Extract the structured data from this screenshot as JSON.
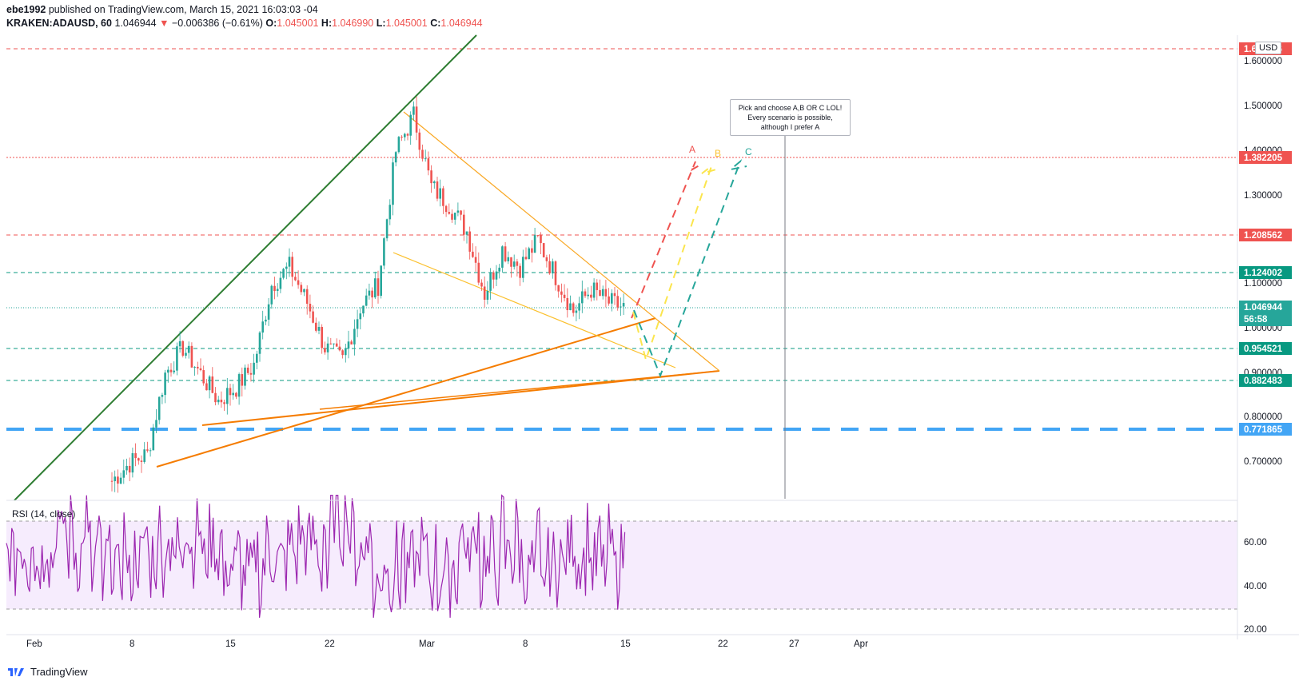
{
  "header": {
    "publisher": "ebe1992",
    "published_text": "published on TradingView.com, March 15, 2021 16:03:03 -04",
    "symbol": "KRAKEN:ADAUSD, 60",
    "last": "1.046944",
    "change": "−0.006386 (−0.61%)",
    "o_label": "O:",
    "o": "1.045001",
    "h_label": "H:",
    "h": "1.046990",
    "l_label": "L:",
    "l": "1.045001",
    "c_label": "C:",
    "c": "1.046944"
  },
  "currency_badge": "USD",
  "note": "Pick and choose A,B OR C LOL! Every scenario is possible, although I prefer A",
  "rsi_label": "RSI (14, close)",
  "footer": {
    "brand": "TradingView"
  },
  "price_axis": {
    "ticks": [
      "1.600000",
      "1.500000",
      "1.400000",
      "1.300000",
      "1.100000",
      "1.000000",
      "0.900000",
      "0.800000",
      "0.700000"
    ],
    "tags": [
      {
        "text": "1.655856",
        "color": "#ef5350"
      },
      {
        "text": "1.382205",
        "color": "#ef5350"
      },
      {
        "text": "1.208562",
        "color": "#ef5350"
      },
      {
        "text": "1.124002",
        "color": "#089981"
      },
      {
        "text": "1.046944",
        "color": "#26a69a"
      },
      {
        "text": "56:58",
        "color": "#26a69a"
      },
      {
        "text": "0.954521",
        "color": "#089981"
      },
      {
        "text": "0.882483",
        "color": "#089981"
      },
      {
        "text": "0.771865",
        "color": "#42a5f5"
      }
    ]
  },
  "rsi_axis": {
    "ticks": [
      "60.00",
      "40.00",
      "20.00"
    ]
  },
  "time_axis": {
    "ticks": [
      "Feb",
      "8",
      "15",
      "22",
      "Mar",
      "8",
      "15",
      "22",
      "27",
      "Apr"
    ]
  },
  "scenario_labels": [
    {
      "text": "A",
      "color": "#ef5350"
    },
    {
      "text": "B",
      "color": "#fbc02d"
    },
    {
      "text": "C",
      "color": "#26a69a"
    }
  ],
  "chart_data": {
    "type": "candlestick",
    "symbol": "KRAKEN:ADAUSD",
    "interval": "60",
    "ylim": [
      0.64,
      1.66
    ],
    "x_ticks": [
      "Feb",
      "8",
      "15",
      "22",
      "Mar",
      "8",
      "15",
      "22",
      "27",
      "Apr"
    ],
    "close_path": [
      [
        "Feb 4",
        0.66
      ],
      [
        "Feb 6",
        0.7
      ],
      [
        "Feb 8",
        0.72
      ],
      [
        "Feb 9",
        0.9
      ],
      [
        "Feb 10",
        0.96
      ],
      [
        "Feb 12",
        0.9
      ],
      [
        "Feb 14",
        0.84
      ],
      [
        "Feb 16",
        0.87
      ],
      [
        "Feb 18",
        0.92
      ],
      [
        "Feb 19",
        1.1
      ],
      [
        "Feb 20",
        1.14
      ],
      [
        "Feb 21",
        1.06
      ],
      [
        "Feb 22",
        0.96
      ],
      [
        "Feb 23",
        0.93
      ],
      [
        "Feb 24",
        1.05
      ],
      [
        "Feb 26",
        1.1
      ],
      [
        "Feb 27",
        1.4
      ],
      [
        "Feb 27 12h",
        1.48
      ],
      [
        "Feb 28",
        1.32
      ],
      [
        "Mar 1",
        1.28
      ],
      [
        "Mar 3",
        1.22
      ],
      [
        "Mar 5",
        1.08
      ],
      [
        "Mar 6",
        1.18
      ],
      [
        "Mar 8",
        1.14
      ],
      [
        "Mar 9",
        1.2
      ],
      [
        "Mar 10",
        1.12
      ],
      [
        "Mar 12",
        1.04
      ],
      [
        "Mar 13",
        1.09
      ],
      [
        "Mar 14",
        1.06
      ],
      [
        "Mar 15",
        1.046944
      ]
    ],
    "levels": [
      1.655856,
      1.382205,
      1.208562,
      1.124002,
      1.046944,
      0.954521,
      0.882483,
      0.771865
    ],
    "rsi": {
      "period": 14,
      "source": "close",
      "ylim": [
        20,
        70
      ],
      "bands": [
        30,
        70
      ]
    }
  }
}
